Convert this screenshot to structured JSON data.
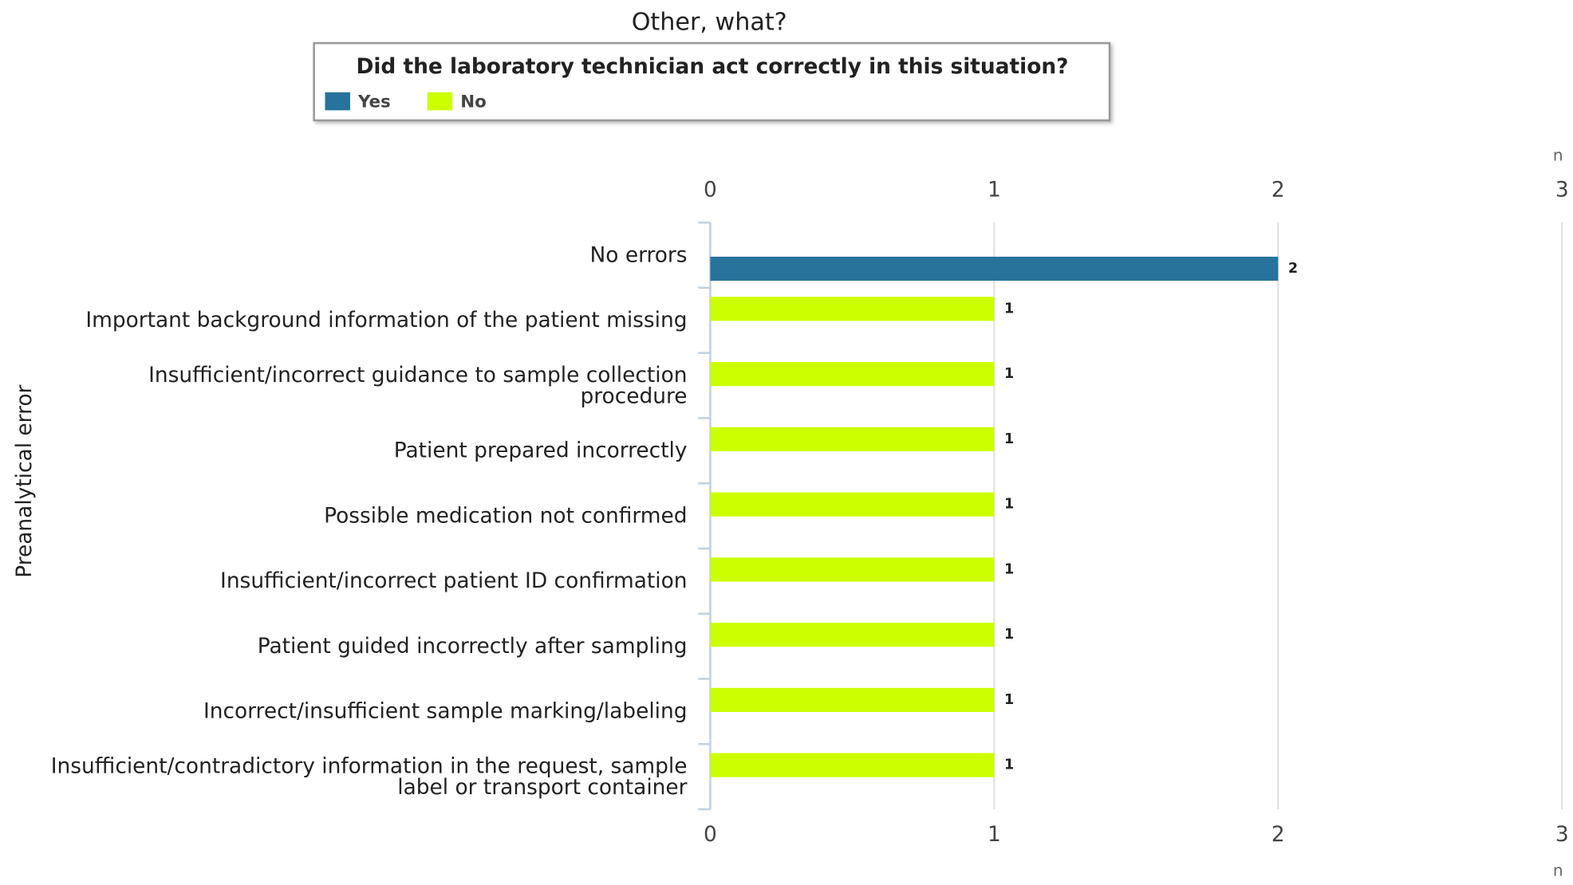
{
  "chart_data": {
    "type": "bar",
    "orientation": "horizontal",
    "title": "Other, what?",
    "legend_title": "Did the laboratory technician act correctly in this situation?",
    "ylabel": "Preanalytical error",
    "xlabel": "n",
    "categories": [
      "No errors",
      "Important background information of the patient missing",
      "Insufficient/incorrect guidance to sample collection procedure",
      "Patient prepared incorrectly",
      "Possible medication not confirmed",
      "Insufficient/incorrect patient ID confirmation",
      "Patient guided incorrectly after sampling",
      "Incorrect/insufficient sample marking/labeling",
      "Insufficient/contradictory information in the request, sample label or transport container"
    ],
    "series": [
      {
        "name": "Yes",
        "color": "#27739b",
        "values": [
          2,
          null,
          null,
          null,
          null,
          null,
          null,
          null,
          null
        ]
      },
      {
        "name": "No",
        "color": "#ccff00",
        "values": [
          null,
          1,
          1,
          1,
          1,
          1,
          1,
          1,
          1
        ]
      }
    ],
    "xlim": [
      0,
      3
    ],
    "xticks": [
      0,
      1,
      2,
      3
    ],
    "grid": true
  }
}
